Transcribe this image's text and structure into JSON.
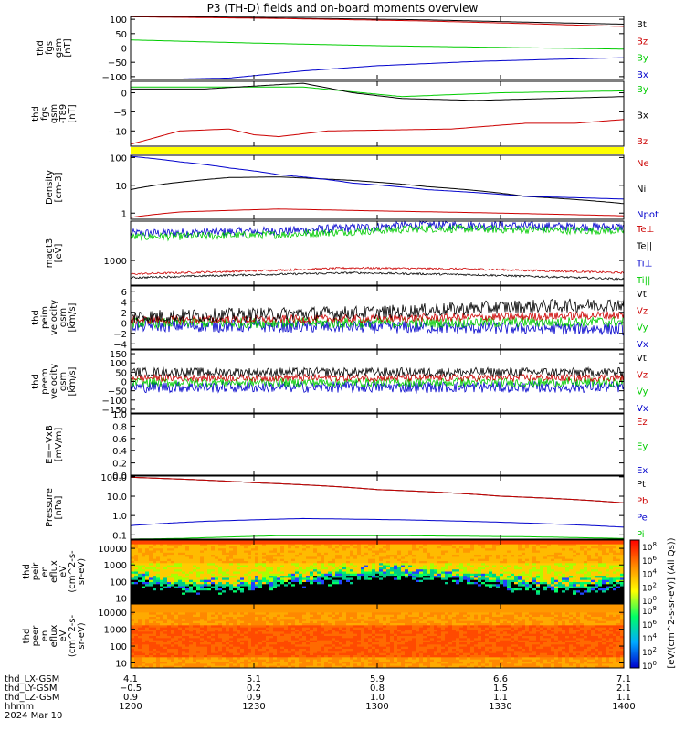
{
  "title": "P3 (TH-D) fields and on-board moments overview",
  "date_label": "2024 Mar 10",
  "colorbar_label": "[eV/(cm^2-s-sr-eV)] (All Qs))",
  "colorbar_ticks": [
    "10^8",
    "10^6",
    "10^4",
    "10^2",
    "10^0"
  ],
  "colors": {
    "black": "#000000",
    "red": "#cc0000",
    "green": "#00cc00",
    "blue": "#0000cc",
    "flag": "#ffff00"
  },
  "chart_data": [
    {
      "id": "fgs",
      "type": "line",
      "ylabel_lines": [
        "thd",
        "fgs",
        "gsm",
        "[nT]"
      ],
      "ylim": [
        -110,
        110
      ],
      "y_ticks": [
        "100",
        "50",
        "0",
        "−50",
        "−100"
      ],
      "y_tick_values": [
        100,
        50,
        0,
        -50,
        -100
      ],
      "legend": [
        {
          "name": "Bt",
          "color": "black"
        },
        {
          "name": "Bz",
          "color": "red"
        },
        {
          "name": "By",
          "color": "green"
        },
        {
          "name": "Bx",
          "color": "blue"
        }
      ],
      "series": [
        {
          "name": "Bt",
          "color": "black",
          "x": [
            0,
            0.3,
            0.6,
            0.8,
            1
          ],
          "y": [
            109,
            105,
            98,
            90,
            83
          ]
        },
        {
          "name": "Bz",
          "color": "red",
          "x": [
            0,
            0.3,
            0.6,
            0.8,
            1
          ],
          "y": [
            109,
            103,
            94,
            85,
            75
          ]
        },
        {
          "name": "By",
          "color": "green",
          "x": [
            0,
            0.25,
            0.5,
            0.75,
            1
          ],
          "y": [
            28,
            17,
            8,
            2,
            -4
          ]
        },
        {
          "name": "Bx",
          "color": "blue",
          "x": [
            0,
            0.2,
            0.35,
            0.5,
            0.7,
            0.85,
            1
          ],
          "y": [
            -112,
            -105,
            -80,
            -62,
            -47,
            -40,
            -34
          ]
        }
      ]
    },
    {
      "id": "fgs_dif",
      "type": "line",
      "ylabel_lines": [
        "thd",
        "fgs",
        "gsm",
        "-T89",
        "[nT]"
      ],
      "ylim": [
        -14,
        3
      ],
      "y_ticks": [
        "0",
        "−5",
        "−10"
      ],
      "y_tick_values": [
        0,
        -5,
        -10
      ],
      "legend": [
        {
          "name": "By",
          "color": "green"
        },
        {
          "name": "Bx",
          "color": "black"
        },
        {
          "name": "Bz",
          "color": "red"
        }
      ],
      "series": [
        {
          "name": "By",
          "color": "green",
          "x": [
            0,
            0.15,
            0.35,
            0.55,
            0.75,
            1
          ],
          "y": [
            1.5,
            1.5,
            1.5,
            -1,
            0,
            0.5
          ]
        },
        {
          "name": "Bx",
          "color": "black",
          "x": [
            0,
            0.15,
            0.35,
            0.45,
            0.55,
            0.7,
            0.85,
            1
          ],
          "y": [
            1,
            1,
            2.5,
            0,
            -1.5,
            -2,
            -1.5,
            -1
          ]
        },
        {
          "name": "Bz",
          "color": "red",
          "x": [
            0,
            0.1,
            0.2,
            0.25,
            0.3,
            0.4,
            0.5,
            0.65,
            0.8,
            0.9,
            1
          ],
          "y": [
            -13.5,
            -10,
            -9.5,
            -11,
            -11.5,
            -10,
            -9.8,
            -9.5,
            -8,
            -8,
            -7
          ]
        }
      ]
    },
    {
      "id": "density",
      "type": "line",
      "yscale": "log",
      "ylabel_lines": [
        "Density",
        "[cm-3]"
      ],
      "ylim": [
        0.6,
        120
      ],
      "y_ticks": [
        "100",
        "10",
        "1"
      ],
      "y_tick_values": [
        100,
        10,
        1
      ],
      "legend": [
        {
          "name": "Ne",
          "color": "red"
        },
        {
          "name": "Ni",
          "color": "black"
        },
        {
          "name": "Npot",
          "color": "blue"
        }
      ],
      "series": [
        {
          "name": "Ni",
          "color": "black",
          "x": [
            0,
            0.1,
            0.2,
            0.3,
            0.45,
            0.6,
            0.8,
            1
          ],
          "y": [
            7,
            13,
            19,
            20,
            15,
            9,
            4,
            2.2
          ]
        },
        {
          "name": "Npot",
          "color": "blue",
          "x": [
            0,
            0.1,
            0.2,
            0.3,
            0.45,
            0.6,
            0.8,
            1
          ],
          "y": [
            110,
            70,
            42,
            24,
            12,
            7,
            4,
            3.2
          ]
        },
        {
          "name": "Ne",
          "color": "red",
          "x": [
            0,
            0.1,
            0.3,
            0.5,
            0.75,
            1
          ],
          "y": [
            0.7,
            1.1,
            1.4,
            1.2,
            1.0,
            0.8
          ]
        }
      ]
    },
    {
      "id": "temp",
      "type": "line",
      "ylabel_lines": [
        "magt3",
        "[eV]"
      ],
      "ylim": [
        0,
        2600
      ],
      "y_ticks": [
        "1000"
      ],
      "y_tick_values": [
        1000
      ],
      "legend": [
        {
          "name": "Te⊥",
          "color": "red"
        },
        {
          "name": "Te||",
          "color": "black"
        },
        {
          "name": "Ti⊥",
          "color": "blue"
        },
        {
          "name": "Ti||",
          "color": "green"
        }
      ],
      "series": [
        {
          "name": "Ti⊥",
          "color": "blue",
          "x": [
            0,
            0.3,
            0.6,
            1
          ],
          "y": [
            2100,
            2200,
            2450,
            2350
          ],
          "noise": 180
        },
        {
          "name": "Ti||",
          "color": "green",
          "x": [
            0,
            0.3,
            0.6,
            1
          ],
          "y": [
            1950,
            2050,
            2300,
            2200
          ],
          "noise": 160
        },
        {
          "name": "Te⊥",
          "color": "red",
          "x": [
            0,
            0.2,
            0.45,
            0.7,
            1
          ],
          "y": [
            450,
            550,
            700,
            650,
            500
          ],
          "noise": 40
        },
        {
          "name": "Te||",
          "color": "black",
          "x": [
            0,
            0.2,
            0.45,
            0.7,
            1
          ],
          "y": [
            300,
            400,
            500,
            420,
            250
          ],
          "noise": 40
        }
      ]
    },
    {
      "id": "peim",
      "type": "line",
      "ylabel_lines": [
        "thd",
        "peim",
        "velocity",
        "gsm",
        "[km/s]"
      ],
      "ylim": [
        -5,
        7
      ],
      "y_ticks": [
        "6",
        "4",
        "2",
        "0",
        "−2",
        "−4"
      ],
      "y_tick_values": [
        6,
        4,
        2,
        0,
        -2,
        -4
      ],
      "legend": [
        {
          "name": "Vt",
          "color": "black"
        },
        {
          "name": "Vz",
          "color": "red"
        },
        {
          "name": "Vy",
          "color": "green"
        },
        {
          "name": "Vx",
          "color": "blue"
        }
      ],
      "series": [
        {
          "name": "Vx",
          "color": "blue",
          "x": [
            0,
            0.5,
            1
          ],
          "y": [
            -0.5,
            -0.8,
            -1.2
          ],
          "noise": 1.2
        },
        {
          "name": "Vy",
          "color": "green",
          "x": [
            0,
            0.5,
            1
          ],
          "y": [
            0,
            0,
            0.2
          ],
          "noise": 1.0
        },
        {
          "name": "Vz",
          "color": "red",
          "x": [
            0,
            0.5,
            1
          ],
          "y": [
            0.5,
            0.8,
            1.5
          ],
          "noise": 0.8
        },
        {
          "name": "Vt",
          "color": "black",
          "x": [
            0,
            0.5,
            0.75,
            1
          ],
          "y": [
            1.2,
            2,
            3,
            3.5
          ],
          "noise": 1.3
        }
      ]
    },
    {
      "id": "peem",
      "type": "line",
      "ylabel_lines": [
        "thd",
        "peem",
        "velocity",
        "gsm",
        "[km/s]"
      ],
      "ylim": [
        -170,
        170
      ],
      "y_ticks": [
        "150",
        "100",
        "50",
        "0",
        "−50",
        "−100",
        "−150"
      ],
      "y_tick_values": [
        150,
        100,
        50,
        0,
        -50,
        -100,
        -150
      ],
      "legend": [
        {
          "name": "Vt",
          "color": "black"
        },
        {
          "name": "Vz",
          "color": "red"
        },
        {
          "name": "Vy",
          "color": "green"
        },
        {
          "name": "Vx",
          "color": "blue"
        }
      ],
      "series": [
        {
          "name": "Vx",
          "color": "blue",
          "x": [
            0,
            1
          ],
          "y": [
            -30,
            -30
          ],
          "noise": 30
        },
        {
          "name": "Vy",
          "color": "green",
          "x": [
            0,
            1
          ],
          "y": [
            -5,
            -5
          ],
          "noise": 25
        },
        {
          "name": "Vz",
          "color": "red",
          "x": [
            0,
            1
          ],
          "y": [
            20,
            20
          ],
          "noise": 20
        },
        {
          "name": "Vt",
          "color": "black",
          "x": [
            0,
            1
          ],
          "y": [
            50,
            50
          ],
          "noise": 25
        }
      ]
    },
    {
      "id": "efield",
      "type": "line",
      "ylabel_lines": [
        "E=−VxB",
        "[mV/m]"
      ],
      "ylim": [
        0,
        1
      ],
      "y_ticks": [
        "1.0",
        "0.8",
        "0.6",
        "0.4",
        "0.2",
        "0.0"
      ],
      "y_tick_values": [
        1,
        0.8,
        0.6,
        0.4,
        0.2,
        0
      ],
      "legend": [
        {
          "name": "Ez",
          "color": "red"
        },
        {
          "name": "Ey",
          "color": "green"
        },
        {
          "name": "Ex",
          "color": "blue"
        }
      ],
      "series": []
    },
    {
      "id": "pressure",
      "type": "line",
      "yscale": "log",
      "ylabel_lines": [
        "Pressure",
        "[nPa]"
      ],
      "ylim": [
        0.06,
        110
      ],
      "y_ticks": [
        "100.0",
        "10.0",
        "1.0",
        "0.1"
      ],
      "y_tick_values": [
        100,
        10,
        1,
        0.1
      ],
      "legend": [
        {
          "name": "Pt",
          "color": "black"
        },
        {
          "name": "Pb",
          "color": "red"
        },
        {
          "name": "Pe",
          "color": "blue"
        },
        {
          "name": "Pi",
          "color": "green"
        }
      ],
      "series": [
        {
          "name": "Pt",
          "color": "black",
          "x": [
            0,
            0.25,
            0.5,
            0.75,
            1
          ],
          "y": [
            95,
            50,
            22,
            10,
            4.5
          ]
        },
        {
          "name": "Pb",
          "color": "red",
          "x": [
            0,
            0.25,
            0.5,
            0.75,
            1
          ],
          "y": [
            95,
            50,
            22,
            10,
            4.5
          ]
        },
        {
          "name": "Pe",
          "color": "blue",
          "x": [
            0,
            0.15,
            0.35,
            0.55,
            0.75,
            1
          ],
          "y": [
            0.3,
            0.5,
            0.7,
            0.6,
            0.45,
            0.25
          ]
        },
        {
          "name": "Pi",
          "color": "green",
          "x": [
            0,
            0.1,
            0.3,
            0.55,
            0.8,
            1
          ],
          "y": [
            0.06,
            0.065,
            0.09,
            0.09,
            0.08,
            0.065
          ]
        }
      ]
    },
    {
      "id": "peir",
      "type": "heatmap",
      "ylabel_lines": [
        "thd",
        "peir",
        "en",
        "eflux",
        "eV",
        "(cm^2-s-",
        "sr-eV)"
      ],
      "ylim_log": [
        0.7,
        4.5
      ],
      "y_ticks": [
        "10000",
        "1000",
        "100",
        "10"
      ],
      "y_tick_values": [
        10000,
        1000,
        100,
        10
      ]
    },
    {
      "id": "peer",
      "type": "heatmap",
      "ylabel_lines": [
        "thd",
        "peer",
        "en",
        "eflux",
        "eV",
        "(cm^2-s-",
        "sr-eV)"
      ],
      "ylim_log": [
        0.7,
        4.5
      ],
      "y_ticks": [
        "10000",
        "1000",
        "100",
        "10"
      ],
      "y_tick_values": [
        10000,
        1000,
        100,
        10
      ]
    }
  ],
  "x_axis": {
    "row_labels": [
      "thd_LX-GSM",
      "thd_LY-GSM",
      "thd_LZ-GSM",
      "hhmm"
    ],
    "ticks": [
      {
        "x": 0,
        "lx": "4.1",
        "ly": "−0.5",
        "lz": "0.9",
        "hhmm": "1200"
      },
      {
        "x": 0.25,
        "lx": "5.1",
        "ly": "0.2",
        "lz": "0.9",
        "hhmm": "1230"
      },
      {
        "x": 0.5,
        "lx": "5.9",
        "ly": "0.8",
        "lz": "1.0",
        "hhmm": "1300"
      },
      {
        "x": 0.75,
        "lx": "6.6",
        "ly": "1.5",
        "lz": "1.1",
        "hhmm": "1330"
      },
      {
        "x": 1,
        "lx": "7.1",
        "ly": "2.1",
        "lz": "1.1",
        "hhmm": "1400"
      }
    ]
  }
}
